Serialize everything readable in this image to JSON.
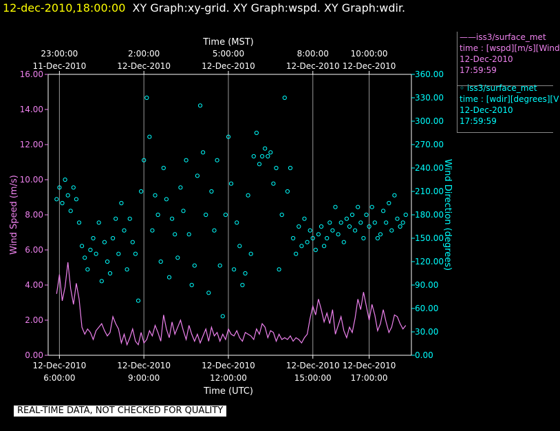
{
  "title": {
    "timestamp": "12-dec-2010,18:00:00",
    "graphs": "XY Graph:xy-grid.  XY Graph:wspd.  XY Graph:wdir."
  },
  "footer_note": "REAL-TIME DATA, NOT CHECKED FOR QUALITY",
  "legend": {
    "wspd": {
      "line1": "——iss3/surface_met",
      "line2": "time : [wspd][m/s][Wind",
      "line3": "12-Dec-2010",
      "line4": "17:59:59"
    },
    "wdir": {
      "line1": "◦  iss3/surface_met",
      "line2": "time : [wdir][degrees][V",
      "line3": "12-Dec-2010",
      "line4": "17:59:59"
    }
  },
  "colors": {
    "wspd": "#ee82ee",
    "wdir": "#00ffff",
    "axis": "#ffffff",
    "background": "#000000"
  },
  "chart_data": {
    "type": "line",
    "x_axis": "time_utc_hours",
    "xlim": [
      5.6,
      18.5
    ],
    "xlabel": "Time (UTC)",
    "top_xlabel": "Time (MST)",
    "bottom_ticks": [
      {
        "t": 6,
        "line1": "12-Dec-2010",
        "line2": "6:00:00"
      },
      {
        "t": 9,
        "line1": "12-Dec-2010",
        "line2": "9:00:00"
      },
      {
        "t": 12,
        "line1": "12-Dec-2010",
        "line2": "12:00:00"
      },
      {
        "t": 15,
        "line1": "12-Dec-2010",
        "line2": "15:00:00"
      },
      {
        "t": 17,
        "line1": "12-Dec-2010",
        "line2": "17:00:00"
      }
    ],
    "top_ticks": [
      {
        "t": 6,
        "line1": "23:00:00",
        "line2": "11-Dec-2010"
      },
      {
        "t": 9,
        "line1": "2:00:00",
        "line2": "12-Dec-2010"
      },
      {
        "t": 12,
        "line1": "5:00:00",
        "line2": "12-Dec-2010"
      },
      {
        "t": 15,
        "line1": "8:00:00",
        "line2": "12-Dec-2010"
      },
      {
        "t": 17,
        "line1": "10:00:00",
        "line2": "12-Dec-2010"
      }
    ],
    "y_left": {
      "label": "Wind Speed (m/s)",
      "ylim": [
        0,
        16
      ],
      "ticks": [
        "0.00",
        "2.00",
        "4.00",
        "6.00",
        "8.00",
        "10.00",
        "12.00",
        "14.00",
        "16.00"
      ]
    },
    "y_right": {
      "label": "Wind Direction (degrees)",
      "ylim": [
        0,
        360
      ],
      "ticks": [
        "0.00",
        "30.00",
        "60.00",
        "90.00",
        "120.00",
        "150.00",
        "180.00",
        "210.00",
        "240.00",
        "270.00",
        "300.00",
        "330.00",
        "360.00"
      ]
    },
    "grid": true,
    "series": [
      {
        "name": "iss3/surface_met time : [wspd][m/s][Wind",
        "axis": "left",
        "style": "line",
        "x": [
          5.9,
          6.0,
          6.1,
          6.2,
          6.3,
          6.4,
          6.5,
          6.6,
          6.7,
          6.8,
          6.9,
          7.0,
          7.1,
          7.2,
          7.3,
          7.4,
          7.5,
          7.6,
          7.7,
          7.8,
          7.9,
          8.0,
          8.1,
          8.2,
          8.3,
          8.4,
          8.5,
          8.6,
          8.7,
          8.8,
          8.9,
          9.0,
          9.1,
          9.2,
          9.3,
          9.4,
          9.5,
          9.6,
          9.7,
          9.8,
          9.9,
          10.0,
          10.1,
          10.2,
          10.3,
          10.4,
          10.5,
          10.6,
          10.7,
          10.8,
          10.9,
          11.0,
          11.1,
          11.2,
          11.3,
          11.4,
          11.5,
          11.6,
          11.7,
          11.8,
          11.9,
          12.0,
          12.1,
          12.2,
          12.3,
          12.4,
          12.5,
          12.6,
          12.7,
          12.8,
          12.9,
          13.0,
          13.1,
          13.2,
          13.3,
          13.4,
          13.5,
          13.6,
          13.7,
          13.8,
          13.9,
          14.0,
          14.1,
          14.2,
          14.3,
          14.4,
          14.5,
          14.6,
          14.7,
          14.8,
          14.9,
          15.0,
          15.1,
          15.2,
          15.3,
          15.4,
          15.5,
          15.6,
          15.7,
          15.8,
          15.9,
          16.0,
          16.1,
          16.2,
          16.3,
          16.4,
          16.5,
          16.6,
          16.7,
          16.8,
          16.9,
          17.0,
          17.1,
          17.2,
          17.3,
          17.4,
          17.5,
          17.6,
          17.7,
          17.8,
          17.9,
          18.0,
          18.1,
          18.2,
          18.3
        ],
        "y": [
          3.5,
          4.6,
          3.1,
          3.9,
          5.3,
          3.8,
          2.9,
          4.1,
          3.2,
          1.6,
          1.2,
          1.5,
          1.3,
          0.9,
          1.4,
          1.6,
          1.8,
          1.4,
          1.1,
          1.3,
          2.2,
          1.8,
          1.5,
          0.7,
          1.2,
          0.6,
          1.0,
          1.5,
          0.8,
          0.6,
          1.3,
          0.7,
          0.9,
          1.4,
          1.1,
          1.7,
          1.3,
          0.8,
          2.3,
          1.5,
          1.0,
          1.9,
          1.2,
          1.6,
          2.0,
          1.4,
          0.9,
          1.7,
          1.2,
          0.8,
          1.2,
          0.7,
          1.1,
          1.5,
          0.8,
          1.6,
          1.1,
          1.3,
          0.8,
          1.2,
          0.9,
          1.5,
          1.2,
          1.1,
          1.4,
          1.0,
          0.8,
          1.3,
          1.2,
          1.1,
          0.9,
          1.5,
          1.2,
          1.8,
          1.6,
          1.0,
          1.4,
          1.3,
          0.8,
          1.2,
          0.9,
          1.0,
          0.9,
          1.1,
          0.8,
          1.0,
          0.9,
          0.7,
          1.0,
          1.2,
          2.1,
          2.8,
          2.3,
          3.2,
          2.6,
          1.9,
          2.4,
          1.8,
          2.6,
          1.2,
          1.7,
          2.2,
          1.4,
          1.0,
          1.6,
          1.3,
          2.1,
          3.2,
          2.6,
          3.6,
          2.8,
          2.0,
          2.9,
          2.3,
          1.4,
          1.8,
          2.6,
          1.9,
          1.3,
          1.6,
          2.3,
          2.2,
          1.8,
          1.5,
          1.7
        ]
      },
      {
        "name": "iss3/surface_met time : [wdir][degrees][V",
        "axis": "right",
        "style": "markers",
        "x": [
          5.9,
          6.0,
          6.1,
          6.2,
          6.3,
          6.4,
          6.5,
          6.6,
          6.7,
          6.8,
          6.9,
          7.0,
          7.1,
          7.2,
          7.3,
          7.4,
          7.5,
          7.6,
          7.7,
          7.8,
          7.9,
          8.0,
          8.1,
          8.2,
          8.3,
          8.4,
          8.5,
          8.6,
          8.7,
          8.8,
          8.9,
          9.0,
          9.1,
          9.2,
          9.3,
          9.4,
          9.5,
          9.6,
          9.7,
          9.8,
          9.9,
          10.0,
          10.1,
          10.2,
          10.3,
          10.4,
          10.5,
          10.6,
          10.7,
          10.8,
          10.9,
          11.0,
          11.1,
          11.2,
          11.3,
          11.4,
          11.5,
          11.6,
          11.7,
          11.8,
          11.9,
          12.0,
          12.1,
          12.2,
          12.3,
          12.4,
          12.5,
          12.6,
          12.7,
          12.8,
          12.9,
          13.0,
          13.1,
          13.2,
          13.3,
          13.4,
          13.5,
          13.6,
          13.7,
          13.8,
          13.9,
          14.0,
          14.1,
          14.2,
          14.3,
          14.4,
          14.5,
          14.6,
          14.7,
          14.8,
          14.9,
          15.0,
          15.1,
          15.2,
          15.3,
          15.4,
          15.5,
          15.6,
          15.7,
          15.8,
          15.9,
          16.0,
          16.1,
          16.2,
          16.3,
          16.4,
          16.5,
          16.6,
          16.7,
          16.8,
          16.9,
          17.0,
          17.1,
          17.2,
          17.3,
          17.4,
          17.5,
          17.6,
          17.7,
          17.8,
          17.9,
          18.0,
          18.1,
          18.2,
          18.3
        ],
        "y": [
          200,
          215,
          195,
          225,
          205,
          185,
          215,
          200,
          170,
          140,
          125,
          110,
          135,
          150,
          130,
          170,
          95,
          145,
          120,
          105,
          150,
          175,
          130,
          195,
          160,
          110,
          175,
          145,
          130,
          70,
          210,
          250,
          330,
          280,
          160,
          205,
          180,
          120,
          240,
          200,
          100,
          175,
          155,
          125,
          215,
          185,
          250,
          155,
          90,
          115,
          230,
          320,
          260,
          180,
          80,
          210,
          160,
          250,
          115,
          50,
          180,
          280,
          220,
          110,
          170,
          140,
          90,
          105,
          205,
          130,
          255,
          285,
          245,
          255,
          265,
          255,
          260,
          220,
          240,
          110,
          180,
          330,
          210,
          240,
          150,
          130,
          165,
          140,
          175,
          145,
          160,
          150,
          135,
          155,
          165,
          140,
          150,
          170,
          160,
          190,
          155,
          170,
          145,
          175,
          165,
          180,
          160,
          190,
          170,
          150,
          180,
          165,
          190,
          170,
          150,
          155,
          185,
          170,
          195,
          160,
          205,
          175,
          165,
          170,
          180
        ]
      }
    ]
  }
}
